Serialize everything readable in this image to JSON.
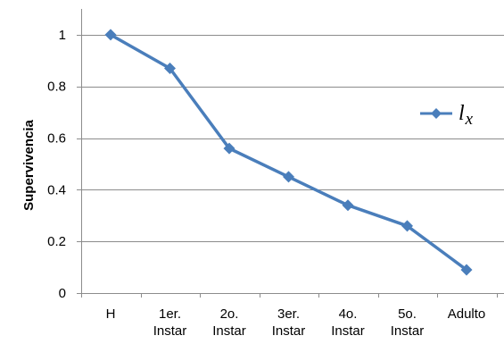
{
  "chart_data": {
    "type": "line",
    "categories": [
      "H",
      "1er.\nInstar",
      "2o.\nInstar",
      "3er.\nInstar",
      "4o.\nInstar",
      "5o.\nInstar",
      "Adulto"
    ],
    "series": [
      {
        "name": "l",
        "name_subscript": "x",
        "values": [
          1.0,
          0.87,
          0.56,
          0.45,
          0.34,
          0.26,
          0.09
        ],
        "color": "#4a7ebb",
        "marker": "diamond"
      }
    ],
    "title": "",
    "xlabel": "",
    "ylabel": "Supervivencia",
    "ylim": [
      0,
      1.1
    ],
    "yticks": [
      0,
      0.2,
      0.4,
      0.6,
      0.8,
      1
    ],
    "ytick_labels": [
      "0",
      "0.2",
      "0.4",
      "0.6",
      "0.8",
      "1"
    ],
    "grid": true,
    "gridline_color": "#8c8c8c",
    "legend": "right"
  }
}
